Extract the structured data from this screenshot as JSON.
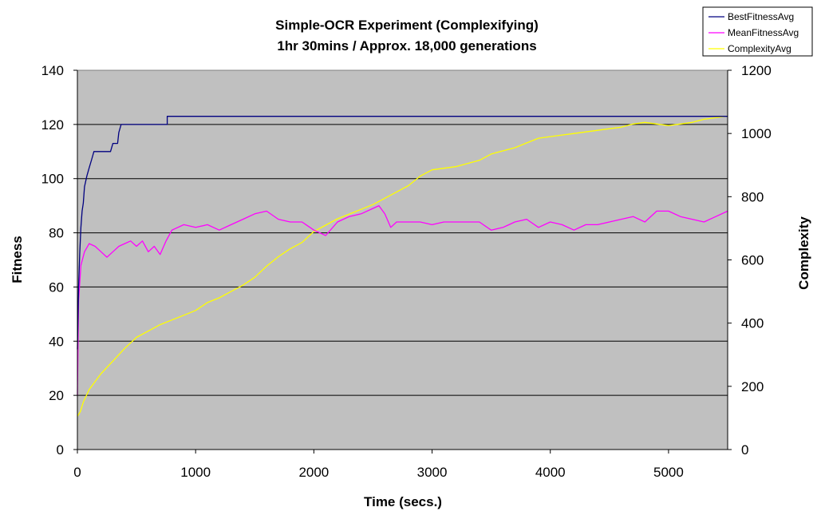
{
  "chart_data": {
    "type": "line",
    "title": "Simple-OCR Experiment (Complexifying)",
    "subtitle": "1hr 30mins / Approx. 18,000 generations",
    "xlabel": "Time (secs.)",
    "ylabel": "Fitness",
    "y2label": "Complexity",
    "xlim": [
      0,
      5500
    ],
    "ylim": [
      0,
      140
    ],
    "y2lim": [
      0,
      1200
    ],
    "x_ticks": [
      "0",
      "1000",
      "2000",
      "3000",
      "4000",
      "5000"
    ],
    "y_ticks": [
      "0",
      "20",
      "40",
      "60",
      "80",
      "100",
      "120",
      "140"
    ],
    "y2_ticks": [
      "0",
      "200",
      "400",
      "600",
      "800",
      "1000",
      "1200"
    ],
    "grid": true,
    "legend_position": "top-right",
    "colors": {
      "plot_bg": "#c0c0c0",
      "BestFitnessAvg": "#000080",
      "MeanFitnessAvg": "#ff00ff",
      "ComplexityAvg": "#ffff00"
    },
    "series": [
      {
        "name": "BestFitnessAvg",
        "axis": "left",
        "points": [
          [
            0,
            37
          ],
          [
            10,
            60
          ],
          [
            20,
            73
          ],
          [
            30,
            82
          ],
          [
            40,
            88
          ],
          [
            50,
            91
          ],
          [
            60,
            97
          ],
          [
            80,
            101
          ],
          [
            100,
            104
          ],
          [
            120,
            107
          ],
          [
            140,
            110
          ],
          [
            200,
            110
          ],
          [
            280,
            110
          ],
          [
            300,
            113
          ],
          [
            340,
            113
          ],
          [
            350,
            117
          ],
          [
            370,
            120
          ],
          [
            500,
            120
          ],
          [
            760,
            120
          ],
          [
            760,
            123
          ],
          [
            2500,
            123
          ],
          [
            5500,
            123
          ]
        ]
      },
      {
        "name": "MeanFitnessAvg",
        "axis": "left",
        "points": [
          [
            0,
            20
          ],
          [
            10,
            55
          ],
          [
            30,
            68
          ],
          [
            60,
            73
          ],
          [
            100,
            76
          ],
          [
            150,
            75
          ],
          [
            200,
            73
          ],
          [
            250,
            71
          ],
          [
            300,
            73
          ],
          [
            350,
            75
          ],
          [
            400,
            76
          ],
          [
            450,
            77
          ],
          [
            500,
            75
          ],
          [
            550,
            77
          ],
          [
            600,
            73
          ],
          [
            650,
            75
          ],
          [
            700,
            72
          ],
          [
            750,
            77
          ],
          [
            800,
            81
          ],
          [
            900,
            83
          ],
          [
            1000,
            82
          ],
          [
            1100,
            83
          ],
          [
            1200,
            81
          ],
          [
            1300,
            83
          ],
          [
            1400,
            85
          ],
          [
            1500,
            87
          ],
          [
            1600,
            88
          ],
          [
            1700,
            85
          ],
          [
            1800,
            84
          ],
          [
            1900,
            84
          ],
          [
            2000,
            81
          ],
          [
            2100,
            79
          ],
          [
            2200,
            84
          ],
          [
            2300,
            86
          ],
          [
            2400,
            87
          ],
          [
            2500,
            89
          ],
          [
            2550,
            90
          ],
          [
            2600,
            87
          ],
          [
            2650,
            82
          ],
          [
            2700,
            84
          ],
          [
            2800,
            84
          ],
          [
            2900,
            84
          ],
          [
            3000,
            83
          ],
          [
            3100,
            84
          ],
          [
            3200,
            84
          ],
          [
            3300,
            84
          ],
          [
            3400,
            84
          ],
          [
            3500,
            81
          ],
          [
            3600,
            82
          ],
          [
            3700,
            84
          ],
          [
            3800,
            85
          ],
          [
            3900,
            82
          ],
          [
            4000,
            84
          ],
          [
            4100,
            83
          ],
          [
            4200,
            81
          ],
          [
            4300,
            83
          ],
          [
            4400,
            83
          ],
          [
            4500,
            84
          ],
          [
            4600,
            85
          ],
          [
            4700,
            86
          ],
          [
            4800,
            84
          ],
          [
            4900,
            88
          ],
          [
            5000,
            88
          ],
          [
            5100,
            86
          ],
          [
            5200,
            85
          ],
          [
            5300,
            84
          ],
          [
            5400,
            86
          ],
          [
            5500,
            88
          ]
        ]
      },
      {
        "name": "ComplexityAvg",
        "axis": "right",
        "points": [
          [
            0,
            105
          ],
          [
            25,
            120
          ],
          [
            50,
            150
          ],
          [
            100,
            190
          ],
          [
            150,
            215
          ],
          [
            200,
            240
          ],
          [
            300,
            280
          ],
          [
            400,
            320
          ],
          [
            500,
            355
          ],
          [
            600,
            375
          ],
          [
            700,
            395
          ],
          [
            800,
            410
          ],
          [
            900,
            425
          ],
          [
            1000,
            440
          ],
          [
            1100,
            465
          ],
          [
            1200,
            480
          ],
          [
            1300,
            500
          ],
          [
            1400,
            520
          ],
          [
            1500,
            545
          ],
          [
            1600,
            580
          ],
          [
            1700,
            610
          ],
          [
            1800,
            635
          ],
          [
            1900,
            655
          ],
          [
            2000,
            690
          ],
          [
            2100,
            710
          ],
          [
            2200,
            730
          ],
          [
            2300,
            745
          ],
          [
            2400,
            760
          ],
          [
            2500,
            775
          ],
          [
            2600,
            795
          ],
          [
            2700,
            815
          ],
          [
            2800,
            835
          ],
          [
            2900,
            865
          ],
          [
            3000,
            885
          ],
          [
            3100,
            890
          ],
          [
            3200,
            895
          ],
          [
            3300,
            905
          ],
          [
            3400,
            915
          ],
          [
            3500,
            935
          ],
          [
            3600,
            945
          ],
          [
            3700,
            955
          ],
          [
            3800,
            970
          ],
          [
            3900,
            985
          ],
          [
            4000,
            990
          ],
          [
            4100,
            995
          ],
          [
            4200,
            1000
          ],
          [
            4300,
            1005
          ],
          [
            4400,
            1010
          ],
          [
            4500,
            1015
          ],
          [
            4600,
            1020
          ],
          [
            4700,
            1030
          ],
          [
            4800,
            1035
          ],
          [
            4900,
            1030
          ],
          [
            5000,
            1025
          ],
          [
            5100,
            1030
          ],
          [
            5200,
            1035
          ],
          [
            5300,
            1045
          ],
          [
            5400,
            1050
          ],
          [
            5500,
            1055
          ]
        ]
      }
    ]
  }
}
